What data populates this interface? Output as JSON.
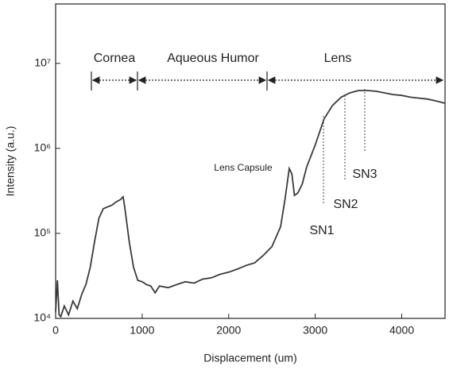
{
  "chart_data": {
    "type": "line",
    "log_y": true,
    "color": "#3a3a3a",
    "xlabel": "Displacement (um)",
    "ylabel": "Intensity (a.u.)",
    "xlim": [
      0,
      4500
    ],
    "xticks": [
      0,
      1000,
      2000,
      3000,
      4000
    ],
    "ylim": [
      10000,
      50000000
    ],
    "yticks": [
      {
        "value": 10000,
        "label": "10⁴"
      },
      {
        "value": 100000,
        "label": "10⁵"
      },
      {
        "value": 1000000,
        "label": "10⁶"
      },
      {
        "value": 10000000,
        "label": "10⁷"
      }
    ],
    "x": [
      0,
      20,
      40,
      60,
      100,
      150,
      200,
      250,
      300,
      350,
      400,
      450,
      500,
      550,
      600,
      650,
      700,
      750,
      780,
      800,
      850,
      900,
      950,
      1000,
      1050,
      1100,
      1150,
      1200,
      1300,
      1400,
      1500,
      1600,
      1700,
      1800,
      1900,
      2000,
      2100,
      2200,
      2300,
      2400,
      2500,
      2600,
      2650,
      2700,
      2730,
      2760,
      2800,
      2850,
      2900,
      3000,
      3100,
      3200,
      3300,
      3400,
      3500,
      3600,
      3700,
      3800,
      3900,
      4000,
      4100,
      4200,
      4300,
      4400,
      4500
    ],
    "values": [
      12000,
      28000,
      11000,
      10500,
      14000,
      11000,
      16000,
      13000,
      19000,
      25000,
      40000,
      80000,
      150000,
      195000,
      205000,
      215000,
      235000,
      250000,
      270000,
      200000,
      80000,
      40000,
      28000,
      27000,
      25000,
      24000,
      20000,
      24000,
      23000,
      25000,
      27000,
      26000,
      29000,
      30000,
      33000,
      35000,
      38000,
      42000,
      45000,
      55000,
      70000,
      120000,
      250000,
      580000,
      500000,
      280000,
      300000,
      380000,
      600000,
      1100000,
      2200000,
      3200000,
      4000000,
      4500000,
      4800000,
      4800000,
      4700000,
      4500000,
      4300000,
      4200000,
      4000000,
      3900000,
      3800000,
      3600000,
      3400000
    ],
    "annotations": [
      "Cornea",
      "Aqueous Humor",
      "Lens",
      "Lens Capsule",
      "SN1",
      "SN2",
      "SN3"
    ]
  }
}
